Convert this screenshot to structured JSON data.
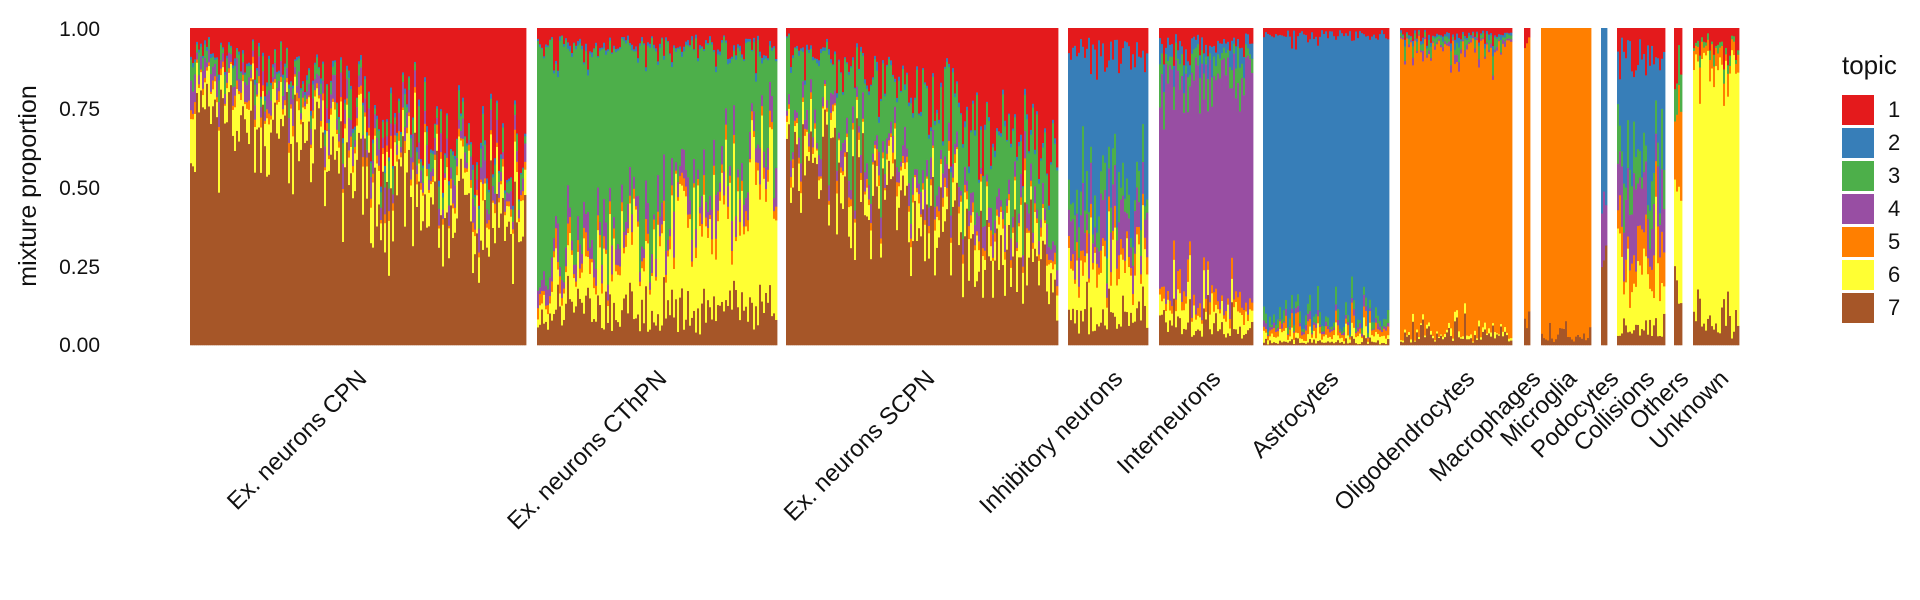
{
  "chart_data": {
    "type": "area",
    "subtype": "structure-plot (stacked mixture proportions per sample, grouped)",
    "ylabel": "mixture proportion",
    "ylim": [
      0,
      1
    ],
    "y_ticks": [
      "0.00",
      "0.25",
      "0.50",
      "0.75",
      "1.00"
    ],
    "grid": false,
    "legend": {
      "title": "topic",
      "position": "right",
      "entries": [
        "1",
        "2",
        "3",
        "4",
        "5",
        "6",
        "7"
      ],
      "colors": [
        "#e41a1c",
        "#377eb8",
        "#4daf4a",
        "#984ea3",
        "#ff7f00",
        "#ffff33",
        "#a65628"
      ]
    },
    "x_ticks": [
      "Ex. neurons CPN",
      "Ex. neurons CThPN",
      "Ex. neurons SCPN",
      "Inhibitory neurons",
      "Interneurons",
      "Astrocytes",
      "Oligodendrocytes",
      "Macrophages",
      "Microglia",
      "Podocytes",
      "Collisions",
      "Others",
      "Unknown"
    ],
    "groups": [
      {
        "name": "Ex. neurons CPN",
        "mean_proportions": [
          0.22,
          0.01,
          0.05,
          0.05,
          0.02,
          0.1,
          0.55
        ]
      },
      {
        "name": "Ex. neurons CThPN",
        "mean_proportions": [
          0.06,
          0.01,
          0.55,
          0.06,
          0.03,
          0.18,
          0.11
        ]
      },
      {
        "name": "Ex. neurons SCPN",
        "mean_proportions": [
          0.18,
          0.01,
          0.22,
          0.05,
          0.02,
          0.08,
          0.44
        ]
      },
      {
        "name": "Inhibitory neurons",
        "mean_proportions": [
          0.08,
          0.45,
          0.08,
          0.1,
          0.04,
          0.15,
          0.1
        ]
      },
      {
        "name": "Interneurons",
        "mean_proportions": [
          0.05,
          0.04,
          0.06,
          0.7,
          0.03,
          0.06,
          0.06
        ]
      },
      {
        "name": "Astrocytes",
        "mean_proportions": [
          0.02,
          0.9,
          0.02,
          0.01,
          0.02,
          0.02,
          0.01
        ]
      },
      {
        "name": "Oligodendrocytes",
        "mean_proportions": [
          0.02,
          0.01,
          0.02,
          0.01,
          0.9,
          0.01,
          0.03
        ]
      },
      {
        "name": "Macrophages",
        "mean_proportions": [
          0.05,
          0.0,
          0.0,
          0.0,
          0.9,
          0.0,
          0.05
        ]
      },
      {
        "name": "Microglia",
        "mean_proportions": [
          0.0,
          0.0,
          0.0,
          0.0,
          0.97,
          0.0,
          0.03
        ]
      },
      {
        "name": "Podocytes",
        "mean_proportions": [
          0.0,
          0.55,
          0.0,
          0.15,
          0.0,
          0.0,
          0.3
        ]
      },
      {
        "name": "Collisions",
        "mean_proportions": [
          0.1,
          0.3,
          0.1,
          0.15,
          0.1,
          0.2,
          0.05
        ]
      },
      {
        "name": "Others",
        "mean_proportions": [
          0.1,
          0.0,
          0.1,
          0.0,
          0.3,
          0.3,
          0.2
        ]
      },
      {
        "name": "Unknown",
        "mean_proportions": [
          0.05,
          0.0,
          0.02,
          0.0,
          0.05,
          0.8,
          0.08
        ]
      }
    ]
  }
}
